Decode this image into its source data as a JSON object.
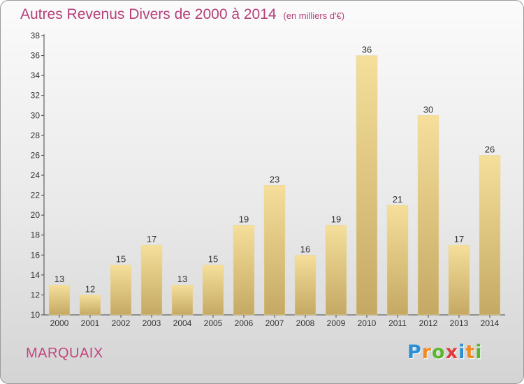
{
  "chart_data": {
    "type": "bar",
    "title": "Autres Revenus Divers de 2000 à 2014",
    "subtitle": "(en milliers d'€)",
    "categories": [
      "2000",
      "2001",
      "2002",
      "2003",
      "2004",
      "2005",
      "2006",
      "2007",
      "2008",
      "2009",
      "2010",
      "2011",
      "2012",
      "2013",
      "2014"
    ],
    "values": [
      13,
      12,
      15,
      17,
      13,
      15,
      19,
      23,
      16,
      19,
      36,
      21,
      30,
      17,
      26
    ],
    "ylim": [
      10,
      38
    ],
    "yticks": [
      10,
      12,
      14,
      16,
      18,
      20,
      22,
      24,
      26,
      28,
      30,
      32,
      34,
      36,
      38
    ],
    "grid": false,
    "colors": {
      "bar_top": "#f5df9a",
      "bar_bottom": "#c4a964",
      "title": "#b5407a"
    }
  },
  "place": "MARQUAIX",
  "logo": {
    "letters": [
      "P",
      "r",
      "o",
      "x",
      "i",
      "t",
      "i"
    ],
    "colors": [
      "#2a8fd6",
      "#f08a24",
      "#5cb531",
      "#e23b3b",
      "#2a8fd6",
      "#f08a24",
      "#5cb531"
    ]
  }
}
